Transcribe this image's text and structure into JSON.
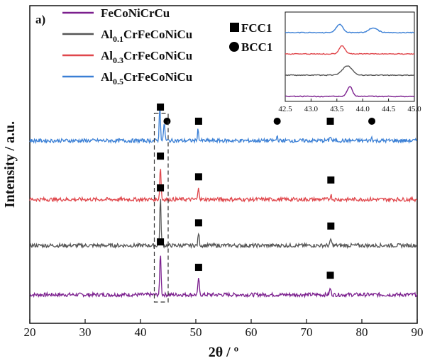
{
  "chart_data": {
    "type": "line",
    "panel_label": "a)",
    "xlabel": "2θ / º",
    "ylabel": "Intensity / a.u.",
    "xlim": [
      20,
      90
    ],
    "x_ticks": [
      "20",
      "30",
      "40",
      "50",
      "60",
      "70",
      "80",
      "90"
    ],
    "legend": {
      "placement": "top-left",
      "entries": [
        {
          "base": "FeCoNiCrCu",
          "sub": "",
          "rest": "",
          "color": "#7b1f8e"
        },
        {
          "base": "Al",
          "sub": "0.1",
          "rest": "CrFeCoNiCu",
          "color": "#555555"
        },
        {
          "base": "Al",
          "sub": "0.3",
          "rest": "CrFeCoNiCu",
          "color": "#e0474c"
        },
        {
          "base": "Al",
          "sub": "0.5",
          "rest": "CrFeCoNiCu",
          "color": "#3a7fd5"
        }
      ]
    },
    "phase_legend": [
      {
        "marker": "square",
        "label": "FCC1"
      },
      {
        "marker": "circle",
        "label": "BCC1"
      }
    ],
    "series": [
      {
        "name": "FeCoNiCrCu",
        "color": "#7b1f8e",
        "baseline": 0.09,
        "peaks": [
          {
            "x": 43.6,
            "h": 0.135
          },
          {
            "x": 50.5,
            "h": 0.055
          },
          {
            "x": 74.3,
            "h": 0.02
          }
        ],
        "markers": [
          {
            "x": 43.6,
            "type": "square"
          },
          {
            "x": 50.5,
            "type": "square"
          },
          {
            "x": 74.3,
            "type": "square"
          }
        ]
      },
      {
        "name": "Al0.1CrFeCoNiCu",
        "color": "#555555",
        "baseline": 0.245,
        "peaks": [
          {
            "x": 43.6,
            "h": 0.15
          },
          {
            "x": 50.5,
            "h": 0.04
          },
          {
            "x": 74.4,
            "h": 0.02
          }
        ],
        "markers": [
          {
            "x": 43.6,
            "type": "square"
          },
          {
            "x": 50.5,
            "type": "square"
          },
          {
            "x": 74.4,
            "type": "square"
          }
        ]
      },
      {
        "name": "Al0.3CrFeCoNiCu",
        "color": "#e0474c",
        "baseline": 0.39,
        "peaks": [
          {
            "x": 43.6,
            "h": 0.105
          },
          {
            "x": 50.5,
            "h": 0.04
          },
          {
            "x": 74.4,
            "h": 0.015
          }
        ],
        "markers": [
          {
            "x": 43.6,
            "type": "square"
          },
          {
            "x": 50.5,
            "type": "square"
          },
          {
            "x": 74.4,
            "type": "square"
          }
        ]
      },
      {
        "name": "Al0.5CrFeCoNiCu",
        "color": "#3a7fd5",
        "baseline": 0.575,
        "peaks": [
          {
            "x": 43.5,
            "h": 0.11
          },
          {
            "x": 44.3,
            "h": 0.06
          },
          {
            "x": 50.4,
            "h": 0.035
          },
          {
            "x": 64.7,
            "h": 0.015
          },
          {
            "x": 74.3,
            "h": 0.015
          },
          {
            "x": 81.8,
            "h": 0.01
          }
        ],
        "markers": [
          {
            "x": 43.6,
            "type": "square"
          },
          {
            "x": 44.8,
            "type": "circle"
          },
          {
            "x": 50.5,
            "type": "square"
          },
          {
            "x": 64.7,
            "type": "circle"
          },
          {
            "x": 74.3,
            "type": "square"
          },
          {
            "x": 81.8,
            "type": "circle"
          }
        ]
      }
    ],
    "highlight_box": {
      "x": [
        42.5,
        45.0
      ]
    },
    "inset": {
      "xlim": [
        42.5,
        45.0
      ],
      "x_ticks": [
        "42.5",
        "43.0",
        "43.5",
        "44.0",
        "44.5",
        "45.0"
      ],
      "series": [
        {
          "name": "FeCoNiCrCu",
          "color": "#7b1f8e",
          "peaks": [
            {
              "x": 43.75,
              "h": 0.55,
              "w": 0.07
            }
          ]
        },
        {
          "name": "Al0.1CrFeCoNiCu",
          "color": "#555555",
          "peaks": [
            {
              "x": 43.7,
              "h": 0.5,
              "w": 0.13
            }
          ]
        },
        {
          "name": "Al0.3CrFeCoNiCu",
          "color": "#e0474c",
          "peaks": [
            {
              "x": 43.6,
              "h": 0.45,
              "w": 0.08
            }
          ]
        },
        {
          "name": "Al0.5CrFeCoNiCu",
          "color": "#3a7fd5",
          "peaks": [
            {
              "x": 43.55,
              "h": 0.45,
              "w": 0.09
            },
            {
              "x": 44.2,
              "h": 0.25,
              "w": 0.12
            }
          ]
        }
      ]
    }
  }
}
